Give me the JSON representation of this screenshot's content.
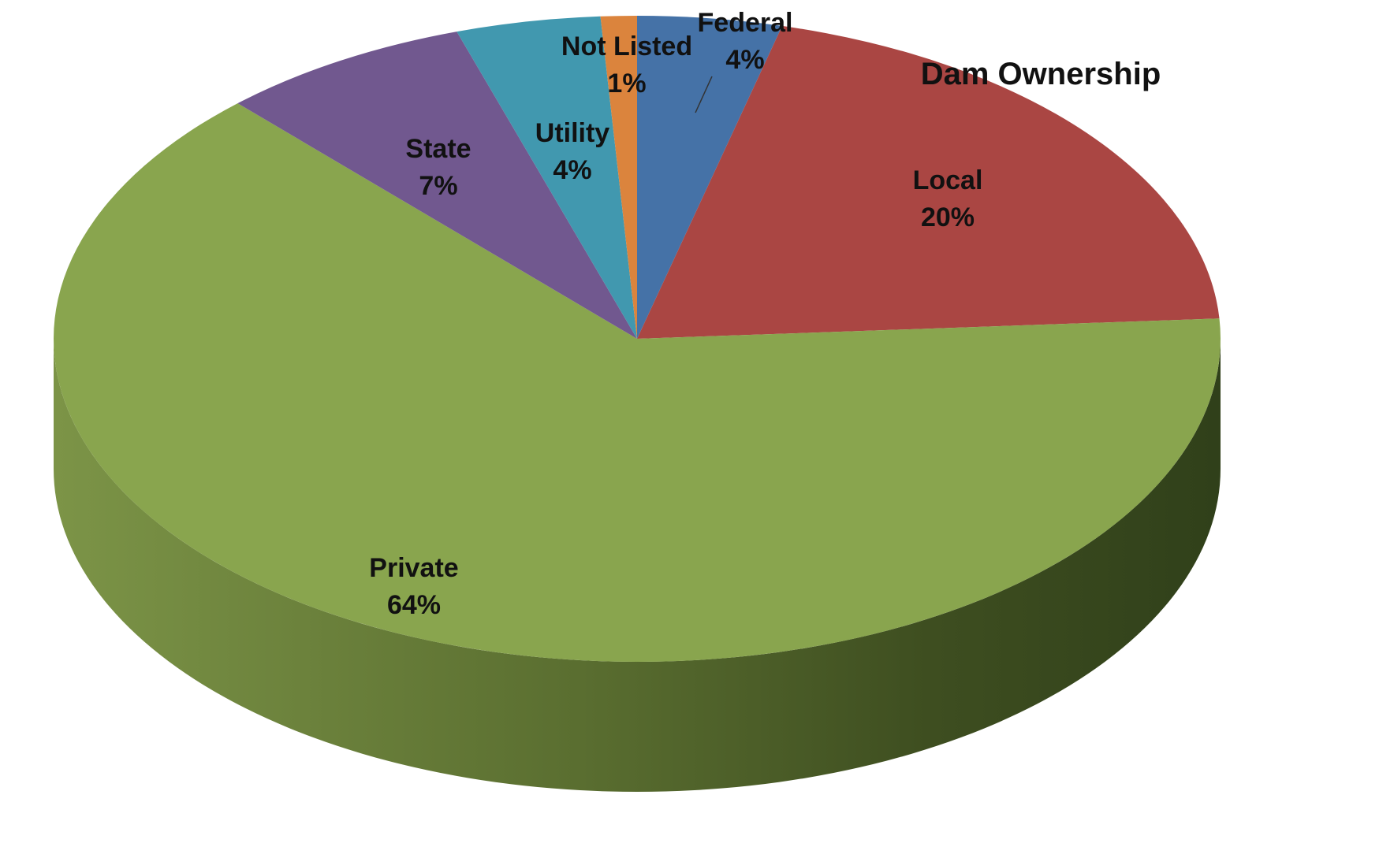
{
  "chart_data": {
    "type": "pie",
    "title": "Dam Ownership",
    "three_d": true,
    "slices": [
      {
        "name": "Federal",
        "value": 4,
        "label": "4%",
        "color": "#4572A7"
      },
      {
        "name": "Local",
        "value": 20,
        "label": "20%",
        "color": "#AA4643"
      },
      {
        "name": "Private",
        "value": 64,
        "label": "64%",
        "color": "#89A54E"
      },
      {
        "name": "State",
        "value": 7,
        "label": "7%",
        "color": "#71588F"
      },
      {
        "name": "Utility",
        "value": 4,
        "label": "4%",
        "color": "#4198AF"
      },
      {
        "name": "Not Listed",
        "value": 1,
        "label": "1%",
        "color": "#DB843D"
      }
    ],
    "legend": "none",
    "label_position": "on-slice"
  }
}
